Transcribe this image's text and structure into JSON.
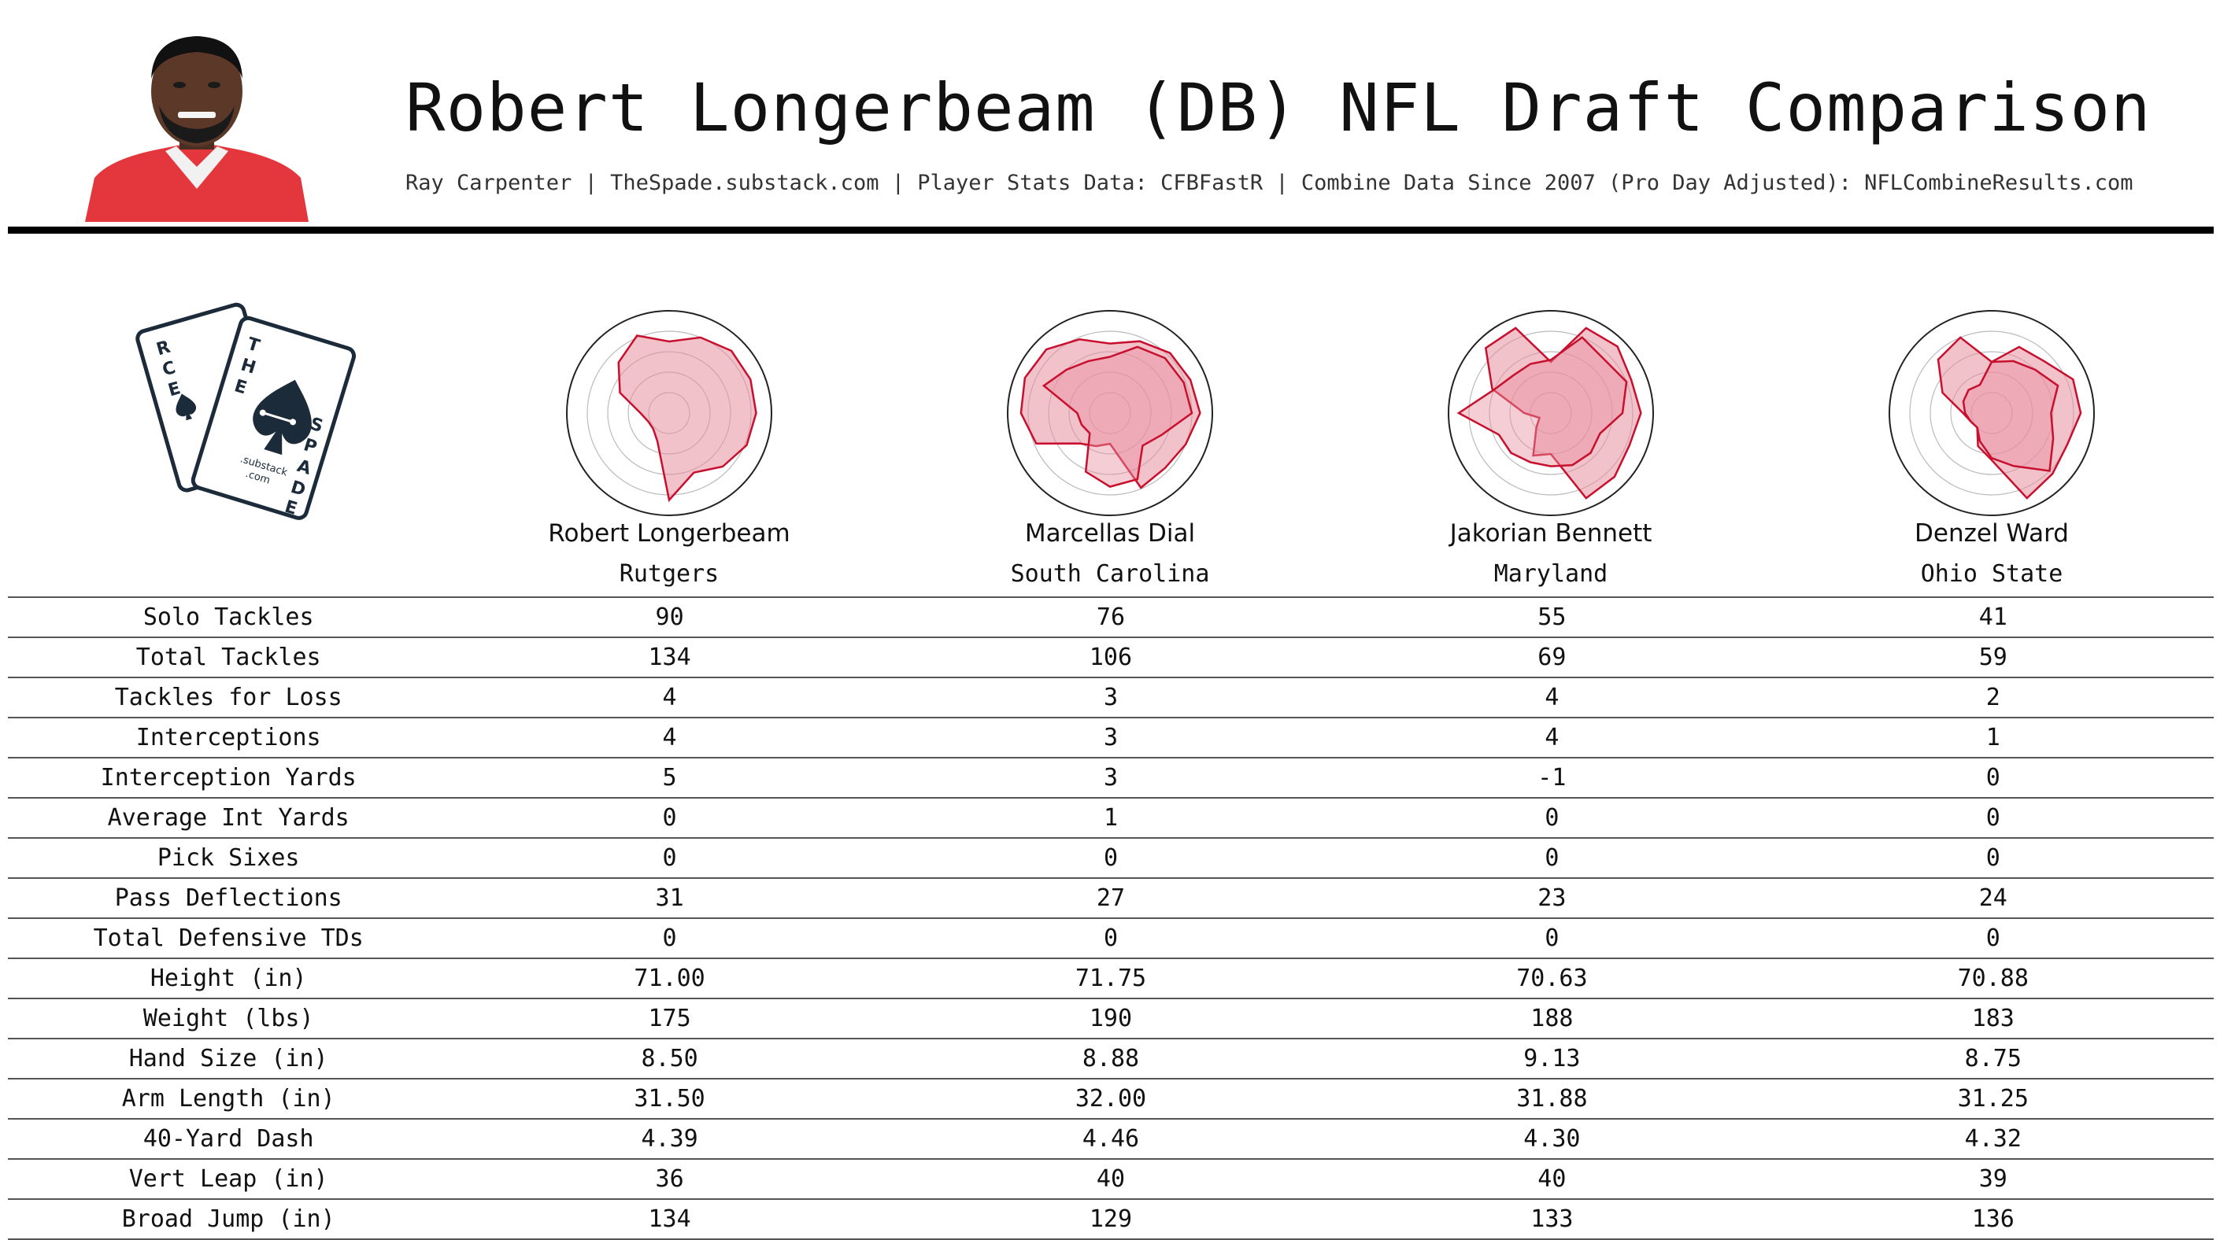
{
  "header": {
    "title": "Robert Longerbeam (DB) NFL Draft Comparison",
    "subtitle": "Ray Carpenter | TheSpade.substack.com | Player Stats Data: CFBFastR | Combine Data Since 2007 (Pro Day Adjusted): NFLCombineResults.com"
  },
  "logo": {
    "back_card_letters": [
      "R",
      "C",
      "E"
    ],
    "front_card_top": [
      "T",
      "H",
      "E"
    ],
    "front_card_side": [
      "S",
      "P",
      "A",
      "D",
      "E"
    ],
    "sub_text": ".substack",
    "sub_text_2": ".com",
    "icon": "spade-cards-logo"
  },
  "colors": {
    "radar_fill": "#e8909f",
    "radar_stroke": "#c8102e",
    "header_rule": "#000000"
  },
  "chart_data": {
    "type": "table",
    "radar_type": "radar",
    "players": [
      {
        "name": "Robert Longerbeam",
        "school": "Rutgers"
      },
      {
        "name": "Marcellas Dial",
        "school": "South Carolina"
      },
      {
        "name": "Jakorian Bennett",
        "school": "Maryland"
      },
      {
        "name": "Denzel Ward",
        "school": "Ohio State"
      }
    ],
    "rows": [
      {
        "label": "Solo Tackles",
        "values": [
          "90",
          "76",
          "55",
          "41"
        ]
      },
      {
        "label": "Total Tackles",
        "values": [
          "134",
          "106",
          "69",
          "59"
        ]
      },
      {
        "label": "Tackles for Loss",
        "values": [
          "4",
          "3",
          "4",
          "2"
        ]
      },
      {
        "label": "Interceptions",
        "values": [
          "4",
          "3",
          "4",
          "1"
        ]
      },
      {
        "label": "Interception Yards",
        "values": [
          "5",
          "3",
          "-1",
          "0"
        ]
      },
      {
        "label": "Average Int Yards",
        "values": [
          "0",
          "1",
          "0",
          "0"
        ]
      },
      {
        "label": "Pick Sixes",
        "values": [
          "0",
          "0",
          "0",
          "0"
        ]
      },
      {
        "label": "Pass Deflections",
        "values": [
          "31",
          "27",
          "23",
          "24"
        ]
      },
      {
        "label": "Total Defensive TDs",
        "values": [
          "0",
          "0",
          "0",
          "0"
        ]
      },
      {
        "label": "Height (in)",
        "values": [
          "71.00",
          "71.75",
          "70.63",
          "70.88"
        ]
      },
      {
        "label": "Weight (lbs)",
        "values": [
          "175",
          "190",
          "188",
          "183"
        ]
      },
      {
        "label": "Hand Size (in)",
        "values": [
          "8.50",
          "8.88",
          "9.13",
          "8.75"
        ]
      },
      {
        "label": "Arm Length (in)",
        "values": [
          "31.50",
          "32.00",
          "31.88",
          "31.25"
        ]
      },
      {
        "label": "40-Yard Dash",
        "values": [
          "4.39",
          "4.46",
          "4.30",
          "4.32"
        ]
      },
      {
        "label": "Vert Leap (in)",
        "values": [
          "36",
          "40",
          "40",
          "39"
        ]
      },
      {
        "label": "Broad Jump (in)",
        "values": [
          "134",
          "129",
          "133",
          "136"
        ]
      }
    ],
    "radar_scale": [
      0,
      1
    ],
    "radar_rings": 5,
    "radar_axes": 16,
    "radar_values": [
      [
        [
          0.7,
          0.8,
          0.86,
          0.86,
          0.85,
          0.82,
          0.74,
          0.63,
          0.85,
          0.3,
          0.22,
          0.22,
          0.28,
          0.52,
          0.7,
          0.82
        ]
      ],
      [
        [
          0.68,
          0.76,
          0.83,
          0.85,
          0.88,
          0.8,
          0.76,
          0.79,
          0.3,
          0.35,
          0.42,
          0.78,
          0.87,
          0.9,
          0.88,
          0.78
        ],
        [
          0.55,
          0.7,
          0.76,
          0.78,
          0.8,
          0.55,
          0.45,
          0.7,
          0.72,
          0.62,
          0.28,
          0.3,
          0.32,
          0.7,
          0.6,
          0.55
        ]
      ],
      [
        [
          0.5,
          0.9,
          0.92,
          0.85,
          0.88,
          0.83,
          0.88,
          0.9,
          0.4,
          0.45,
          0.2,
          0.12,
          0.26,
          0.62,
          0.9,
          0.9
        ],
        [
          0.52,
          0.8,
          0.74,
          0.8,
          0.7,
          0.52,
          0.55,
          0.55,
          0.52,
          0.52,
          0.55,
          0.55,
          0.9,
          0.6,
          0.52,
          0.52
        ]
      ],
      [
        [
          0.5,
          0.7,
          0.72,
          0.86,
          0.87,
          0.8,
          0.84,
          0.9,
          0.46,
          0.35,
          0.2,
          0.22,
          0.28,
          0.52,
          0.74,
          0.8
        ],
        [
          0.5,
          0.55,
          0.6,
          0.7,
          0.58,
          0.65,
          0.8,
          0.56,
          0.44,
          0.3,
          0.2,
          0.22,
          0.26,
          0.3,
          0.32,
          0.3
        ]
      ]
    ]
  }
}
